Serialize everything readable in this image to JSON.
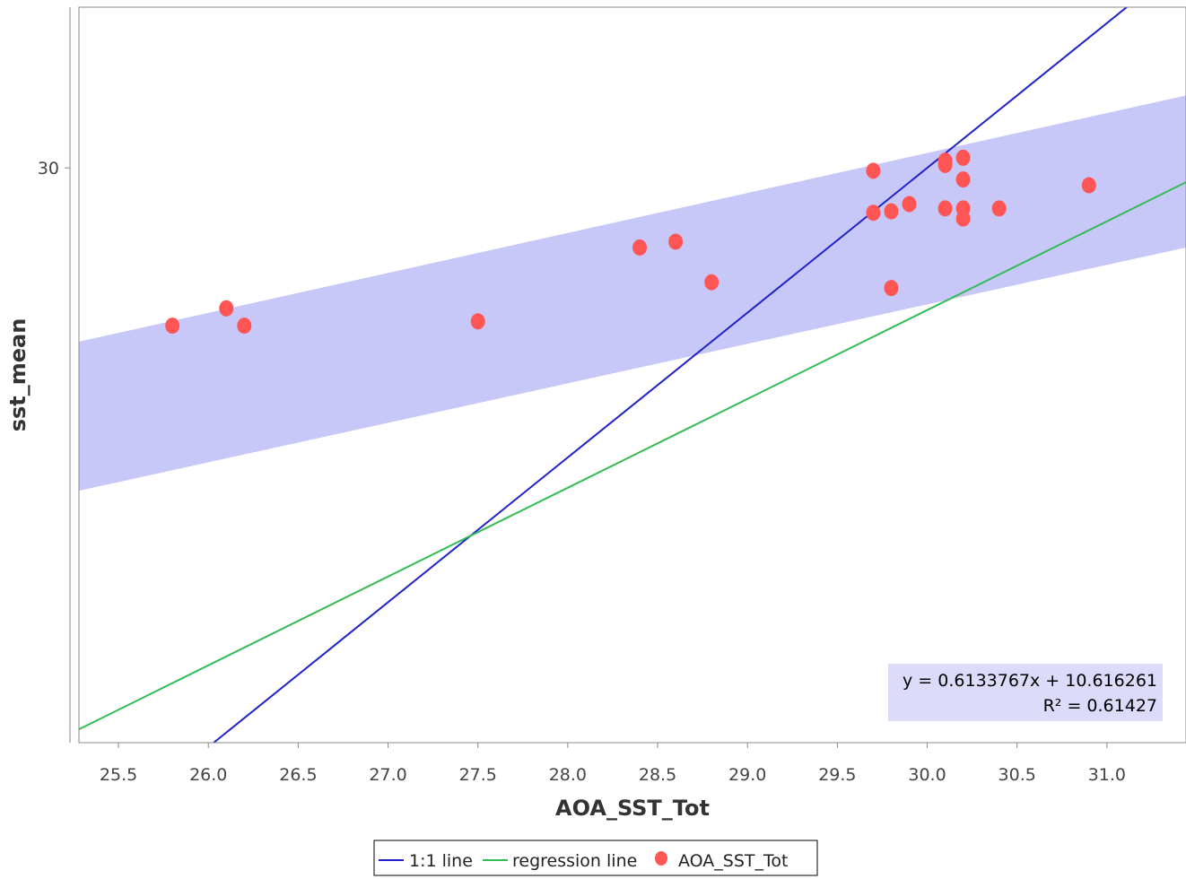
{
  "chart_data": {
    "type": "scatter",
    "xlabel": "AOA_SST_Tot",
    "ylabel": "sst_mean",
    "xlim": [
      25.28,
      31.44
    ],
    "ylim": [
      26.03,
      31.11
    ],
    "x_ticks": [
      "25.5",
      "26.0",
      "26.5",
      "27.0",
      "27.5",
      "28.0",
      "28.5",
      "29.0",
      "29.5",
      "30.0",
      "30.5",
      "31.0"
    ],
    "y_ticks": [
      "30"
    ],
    "grid": false,
    "series": [
      {
        "name": "AOA_SST_Tot",
        "kind": "scatter",
        "color": "#ff5555",
        "points": [
          [
            25.8,
            28.91
          ],
          [
            26.1,
            29.03
          ],
          [
            26.2,
            28.91
          ],
          [
            27.5,
            28.94
          ],
          [
            28.4,
            29.45
          ],
          [
            28.6,
            29.49
          ],
          [
            28.8,
            29.21
          ],
          [
            29.7,
            29.98
          ],
          [
            29.7,
            29.69
          ],
          [
            29.8,
            29.7
          ],
          [
            29.8,
            29.17
          ],
          [
            29.9,
            29.75
          ],
          [
            30.1,
            30.05
          ],
          [
            30.1,
            30.02
          ],
          [
            30.1,
            29.72
          ],
          [
            30.2,
            30.07
          ],
          [
            30.2,
            29.92
          ],
          [
            30.2,
            29.72
          ],
          [
            30.2,
            29.65
          ],
          [
            30.4,
            29.72
          ],
          [
            30.9,
            29.88
          ]
        ]
      },
      {
        "name": "1:1 line",
        "kind": "line",
        "color": "#2222cc",
        "points": [
          [
            25.28,
            25.28
          ],
          [
            31.44,
            31.44
          ]
        ]
      },
      {
        "name": "regression line",
        "kind": "line",
        "color": "#33bb55",
        "slope": 0.6133767,
        "intercept": 10.616261
      }
    ],
    "band": {
      "color": "#c8c8f8",
      "upper": [
        [
          25.28,
          28.8
        ],
        [
          31.44,
          30.5
        ]
      ],
      "lower": [
        [
          25.28,
          27.77
        ],
        [
          31.44,
          29.45
        ]
      ]
    },
    "equation": {
      "line1": "y = 0.6133767x + 10.616261",
      "line2": "R² = 0.61427"
    },
    "legend": {
      "placement": "bottom-center",
      "items": [
        {
          "label": "1:1 line",
          "kind": "line",
          "color": "#2222cc"
        },
        {
          "label": "regression line",
          "kind": "line",
          "color": "#33bb55"
        },
        {
          "label": "AOA_SST_Tot",
          "kind": "dot",
          "color": "#ff5555"
        }
      ]
    }
  }
}
